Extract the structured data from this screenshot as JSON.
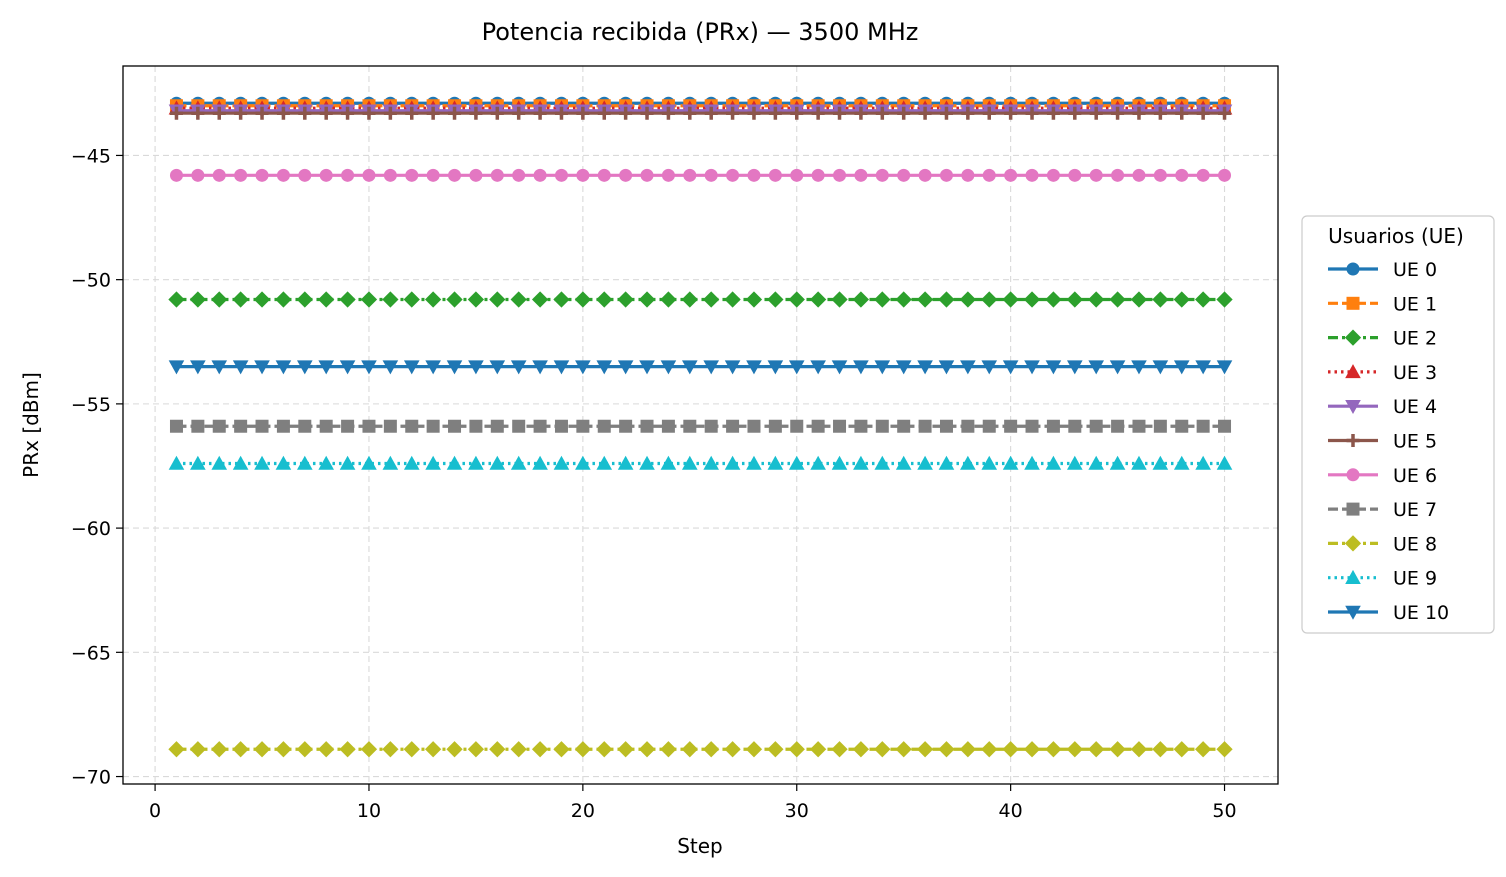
{
  "chart_data": {
    "type": "line",
    "title": "Potencia recibida (PRx) — 3500 MHz",
    "xlabel": "Step",
    "ylabel": "PRx [dBm]",
    "xlim": [
      -1.5,
      52.5
    ],
    "ylim": [
      -70.3,
      -41.4
    ],
    "xticks": [
      0,
      10,
      20,
      30,
      40,
      50
    ],
    "yticks": [
      -70,
      -65,
      -60,
      -55,
      -50,
      -45
    ],
    "grid": true,
    "legend": {
      "title": "Usuarios (UE)",
      "placement": "outside-right"
    },
    "x_start": 1,
    "x_end": 50,
    "series": [
      {
        "name": "UE 0",
        "value": -42.9,
        "color": "#1f77b4",
        "marker": "circle",
        "linestyle": "solid"
      },
      {
        "name": "UE 1",
        "value": -43.0,
        "color": "#ff7f0e",
        "marker": "square",
        "linestyle": "dashed"
      },
      {
        "name": "UE 2",
        "value": -50.8,
        "color": "#2ca02c",
        "marker": "diamond",
        "linestyle": "dashdot"
      },
      {
        "name": "UE 3",
        "value": -43.1,
        "color": "#d62728",
        "marker": "triangle-up",
        "linestyle": "dotted"
      },
      {
        "name": "UE 4",
        "value": -43.2,
        "color": "#9467bd",
        "marker": "triangle-down",
        "linestyle": "solid"
      },
      {
        "name": "UE 5",
        "value": -43.3,
        "color": "#8c564b",
        "marker": "plus",
        "linestyle": "solid"
      },
      {
        "name": "UE 6",
        "value": -45.8,
        "color": "#e377c2",
        "marker": "circle",
        "linestyle": "solid"
      },
      {
        "name": "UE 7",
        "value": -55.9,
        "color": "#7f7f7f",
        "marker": "square",
        "linestyle": "dashed"
      },
      {
        "name": "UE 8",
        "value": -68.9,
        "color": "#bcbd22",
        "marker": "diamond",
        "linestyle": "dashdot"
      },
      {
        "name": "UE 9",
        "value": -57.4,
        "color": "#17becf",
        "marker": "triangle-up",
        "linestyle": "dotted"
      },
      {
        "name": "UE 10",
        "value": -53.5,
        "color": "#1f77b4",
        "marker": "triangle-down",
        "linestyle": "solid"
      }
    ]
  }
}
